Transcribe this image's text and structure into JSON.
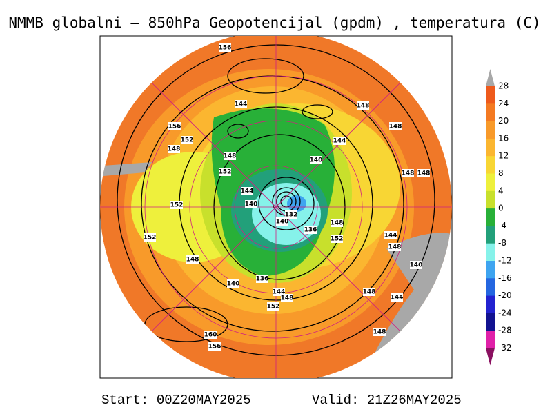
{
  "title": "NMMB globalni – 850hPa Geopotencijal (gpdm) , temperatura (C)",
  "colorbar": {
    "ticks": [
      28,
      24,
      20,
      16,
      12,
      8,
      4,
      0,
      -4,
      -8,
      -12,
      -16,
      -20,
      -24,
      -28,
      -32
    ],
    "colors": [
      "#ee5a1c",
      "#f47a22",
      "#f89a2a",
      "#fbb630",
      "#f8d634",
      "#eef03c",
      "#c8e02c",
      "#28b038",
      "#22a07a",
      "#86f2ea",
      "#3ea4f0",
      "#2466e0",
      "#2222d0",
      "#121290",
      "#e020a8"
    ],
    "over_color": "#a8a8a8",
    "under_color": "#8a1060"
  },
  "contour_labels": [
    "156",
    "144",
    "148",
    "148",
    "156",
    "152",
    "148",
    "144",
    "148",
    "140",
    "152",
    "148",
    "148",
    "152",
    "144",
    "140",
    "152",
    "140",
    "132",
    "136",
    "148",
    "152",
    "144",
    "148",
    "148",
    "140",
    "136",
    "144",
    "148",
    "152",
    "148",
    "144",
    "140",
    "160",
    "156",
    "148"
  ],
  "footer": {
    "start": "Start: 00Z20MAY2025",
    "valid": "Valid: 21Z26MAY2025"
  }
}
